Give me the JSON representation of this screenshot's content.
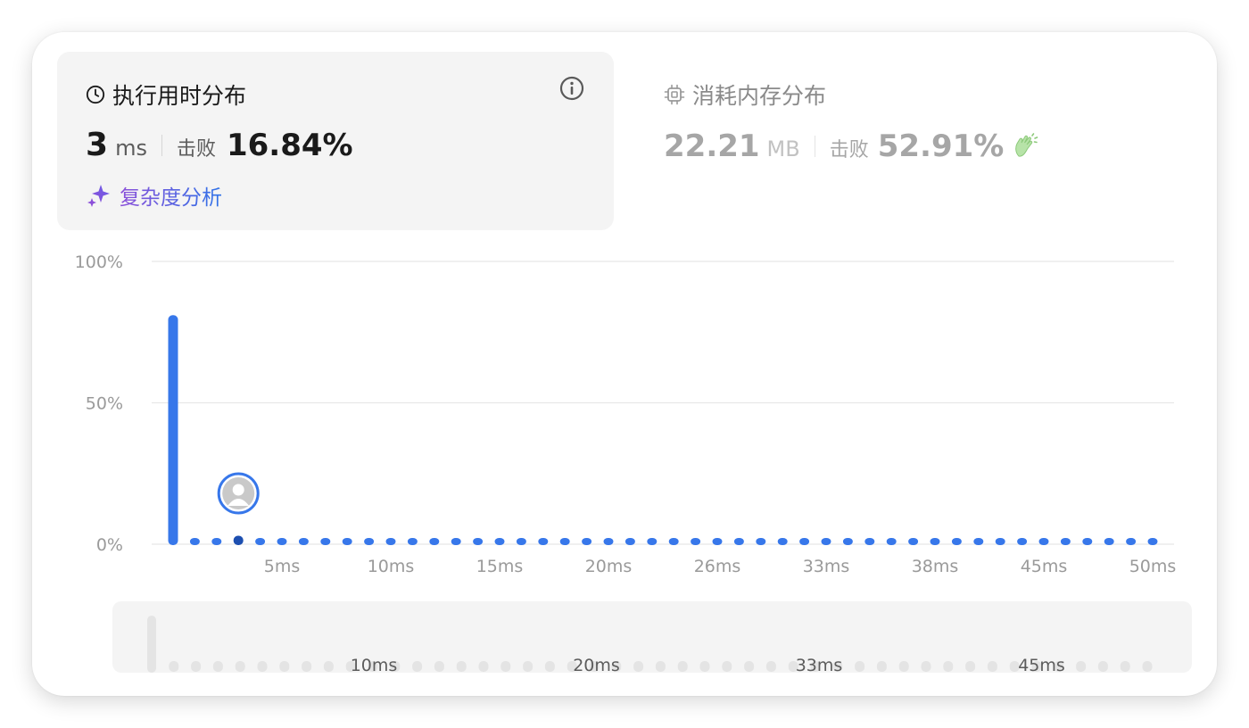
{
  "runtime": {
    "title": "执行用时分布",
    "value": "3",
    "unit": "ms",
    "beat_label": "击败",
    "beat_pct": "16.84%",
    "analysis_label": "复杂度分析"
  },
  "memory": {
    "title": "消耗内存分布",
    "value": "22.21",
    "unit": "MB",
    "beat_label": "击败",
    "beat_pct": "52.91%"
  },
  "icons": {
    "clock": "clock-icon",
    "info": "info-icon",
    "sparkle": "sparkle-icon",
    "chip": "chip-icon",
    "clap": "clap-icon",
    "avatar": "avatar-icon"
  },
  "colors": {
    "bar": "#3777ea",
    "bar_highlight": "#1d4fb0",
    "analysis_start": "#8b4fd9",
    "analysis_end": "#2f73e8",
    "brush_dot": "#e4e4e4"
  },
  "chart_data": {
    "type": "bar",
    "ylabel_ticks": [
      "100%",
      "50%",
      "0%"
    ],
    "ylim": [
      0,
      100
    ],
    "x_tick_labels": [
      "5ms",
      "10ms",
      "15ms",
      "20ms",
      "26ms",
      "33ms",
      "38ms",
      "45ms",
      "50ms"
    ],
    "values": [
      81,
      2,
      2,
      3,
      2,
      2,
      2,
      2,
      2,
      2,
      2,
      2,
      2,
      2,
      2,
      2,
      2,
      2,
      2,
      2,
      2,
      2,
      2,
      2,
      2,
      2,
      2,
      2,
      2,
      2,
      2,
      2,
      2,
      2,
      2,
      2,
      2,
      2,
      2,
      2,
      2,
      2,
      2,
      2,
      2,
      2
    ],
    "current_index": 3,
    "grid": true
  },
  "brush_data": {
    "x_tick_labels": [
      "10ms",
      "20ms",
      "33ms",
      "45ms"
    ]
  }
}
